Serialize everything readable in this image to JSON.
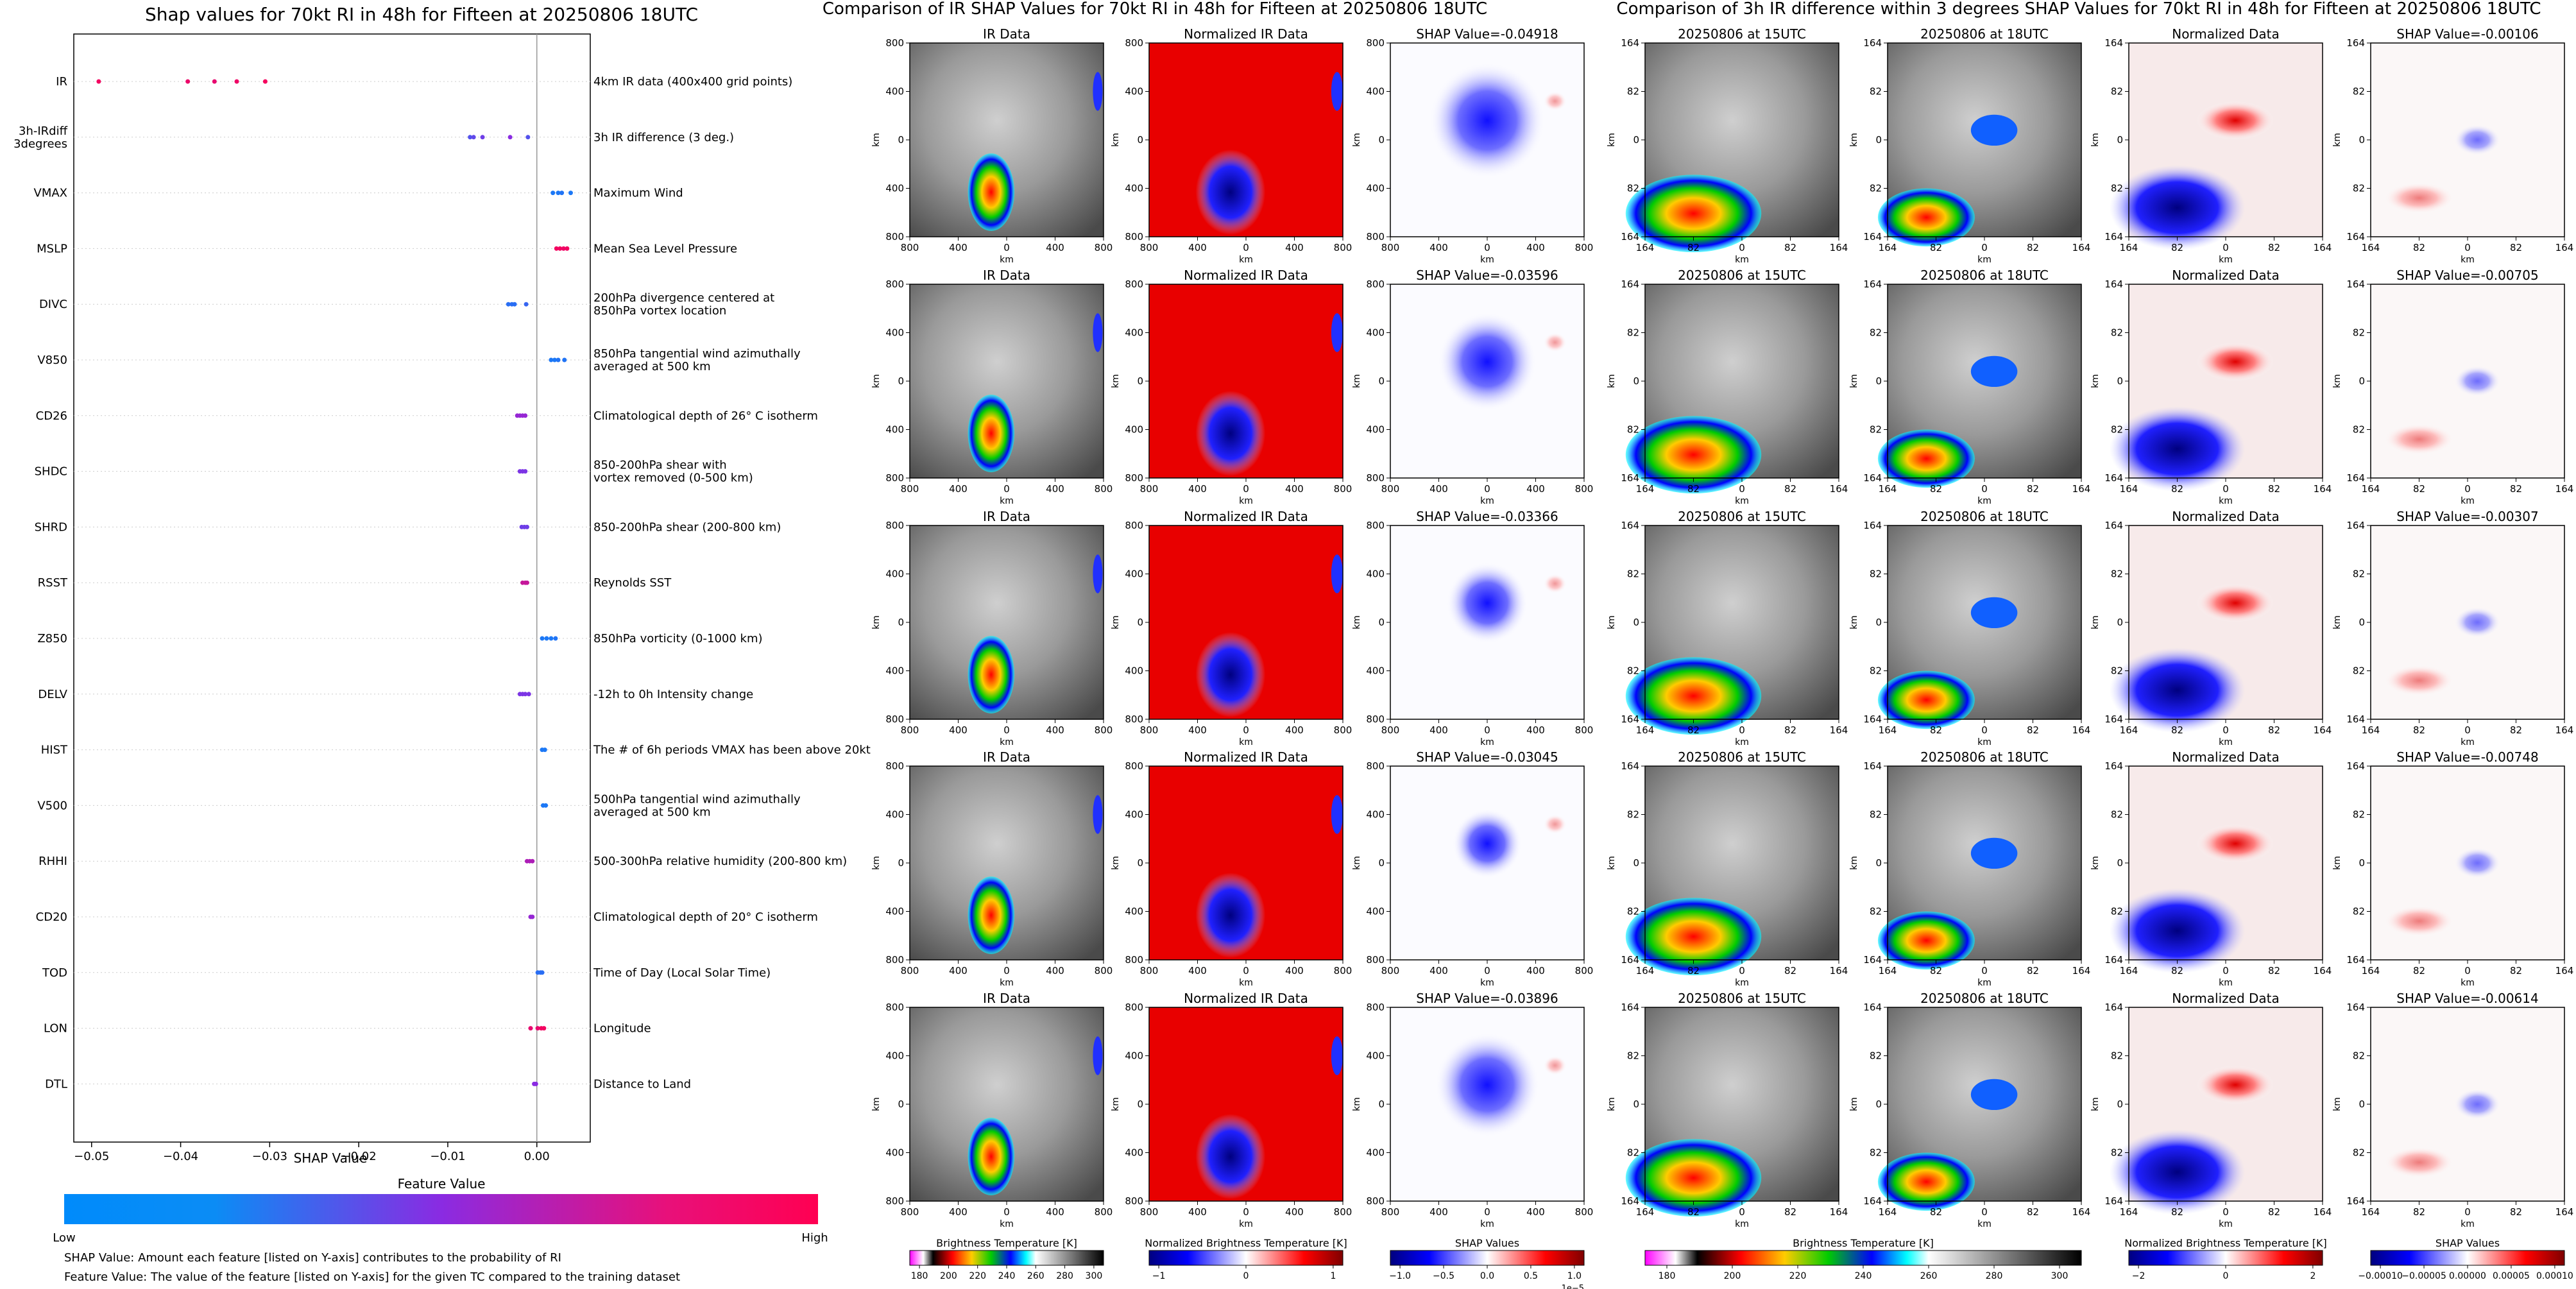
{
  "left_panel": {
    "title": "Shap values for 70kt RI in 48h for Fifteen at 20250806 18UTC",
    "xlabel": "SHAP Value",
    "colorbar_title": "Feature Value",
    "colorbar_low": "Low",
    "colorbar_high": "High",
    "footnote1": "SHAP Value: Amount each feature [listed on Y-axis] contributes to the probability of RI",
    "footnote2": "Feature Value: The value of the feature [listed on Y-axis] for the given TC compared to the training dataset"
  },
  "middle_panel": {
    "title": "Comparison of IR SHAP Values for 70kt RI in 48h for Fifteen at 20250806 18UTC",
    "col_titles": [
      "IR Data",
      "Normalized IR Data"
    ],
    "shap_titles": [
      "SHAP Value=-0.04918",
      "SHAP Value=-0.03596",
      "SHAP Value=-0.03366",
      "SHAP Value=-0.03045",
      "SHAP Value=-0.03896"
    ],
    "axis_unit": "km",
    "ticks": [
      "800",
      "400",
      "0",
      "400",
      "800"
    ],
    "colorbars": [
      {
        "label": "Brightness Temperature [K]",
        "ticks": [
          "180",
          "200",
          "220",
          "240",
          "260",
          "280",
          "300"
        ]
      },
      {
        "label": "Normalized Brightness Temperature [K]",
        "ticks": [
          "−1",
          "0",
          "1"
        ]
      },
      {
        "label": "SHAP Values",
        "ticks": [
          "−1.0",
          "−0.5",
          "0.0",
          "0.5",
          "1.0"
        ],
        "exponent": "1e−5"
      }
    ]
  },
  "right_panel": {
    "title": "Comparison of 3h IR difference within 3 degrees SHAP Values for 70kt RI in 48h for Fifteen at 20250806 18UTC",
    "col_titles": [
      "20250806 at 15UTC",
      "20250806 at 18UTC",
      "Normalized Data"
    ],
    "shap_titles": [
      "SHAP Value=-0.00106",
      "SHAP Value=-0.00705",
      "SHAP Value=-0.00307",
      "SHAP Value=-0.00748",
      "SHAP Value=-0.00614"
    ],
    "axis_unit": "km",
    "ticks": [
      "164",
      "82",
      "0",
      "82",
      "164"
    ],
    "colorbars": [
      {
        "label": "Brightness Temperature [K]",
        "ticks": [
          "180",
          "200",
          "220",
          "240",
          "260",
          "280",
          "300"
        ]
      },
      {
        "label": "Normalized Brightness Temperature [K]",
        "ticks": [
          "−2",
          "0",
          "2"
        ]
      },
      {
        "label": "SHAP Values",
        "ticks": [
          "−0.00010",
          "−0.00005",
          "0.00000",
          "0.00005",
          "0.00010"
        ]
      }
    ]
  },
  "chart_data": [
    {
      "type": "scatter",
      "title": "Shap values for 70kt RI in 48h for Fifteen at 20250806 18UTC",
      "xlabel": "SHAP Value",
      "xlim": [
        -0.052,
        0.006
      ],
      "xticks": [
        -0.05,
        -0.04,
        -0.03,
        -0.02,
        -0.01,
        0.0
      ],
      "xtick_labels": [
        "−0.05",
        "−0.04",
        "−0.03",
        "−0.02",
        "−0.01",
        "0.00"
      ],
      "colors": {
        "low": "#008bfb",
        "mid": "#8a2be2",
        "high": "#ff0052"
      },
      "features": [
        {
          "name": "IR",
          "desc": "4km IR data (400x400 grid points)",
          "points": [
            [
              -0.0492,
              0.95
            ],
            [
              -0.0392,
              0.92
            ],
            [
              -0.0362,
              0.9
            ],
            [
              -0.0337,
              0.93
            ],
            [
              -0.0305,
              0.96
            ]
          ]
        },
        {
          "name": "3h-IRdiff\n3degrees",
          "desc": "3h IR difference (3 deg.)",
          "points": [
            [
              -0.0075,
              0.3
            ],
            [
              -0.0071,
              0.35
            ],
            [
              -0.0061,
              0.4
            ],
            [
              -0.003,
              0.5
            ],
            [
              -0.001,
              0.3
            ]
          ]
        },
        {
          "name": "VMAX",
          "desc": "Maximum Wind",
          "points": [
            [
              0.0018,
              0.1
            ],
            [
              0.0024,
              0.1
            ],
            [
              0.0028,
              0.12
            ],
            [
              0.0038,
              0.1
            ]
          ]
        },
        {
          "name": "MSLP",
          "desc": "Mean Sea Level Pressure",
          "points": [
            [
              0.0022,
              0.95
            ],
            [
              0.0026,
              0.95
            ],
            [
              0.003,
              0.93
            ],
            [
              0.0034,
              0.95
            ]
          ]
        },
        {
          "name": "DIVC",
          "desc": "200hPa divergence centered at\n850hPa vortex location",
          "points": [
            [
              -0.0032,
              0.15
            ],
            [
              -0.0028,
              0.15
            ],
            [
              -0.0025,
              0.15
            ],
            [
              -0.0012,
              0.2
            ]
          ]
        },
        {
          "name": "V850",
          "desc": "850hPa tangential wind azimuthally\naveraged at 500 km",
          "points": [
            [
              0.0016,
              0.1
            ],
            [
              0.002,
              0.1
            ],
            [
              0.0024,
              0.12
            ],
            [
              0.0031,
              0.12
            ]
          ]
        },
        {
          "name": "CD26",
          "desc": "Climatological depth of 26° C isotherm",
          "points": [
            [
              -0.0022,
              0.55
            ],
            [
              -0.0019,
              0.55
            ],
            [
              -0.0016,
              0.55
            ],
            [
              -0.0013,
              0.55
            ]
          ]
        },
        {
          "name": "SHDC",
          "desc": "850-200hPa shear with\nvortex removed (0-500 km)",
          "points": [
            [
              -0.0019,
              0.45
            ],
            [
              -0.0016,
              0.45
            ],
            [
              -0.0013,
              0.45
            ]
          ]
        },
        {
          "name": "SHRD",
          "desc": "850-200hPa shear (200-800 km)",
          "points": [
            [
              -0.0017,
              0.4
            ],
            [
              -0.0014,
              0.4
            ],
            [
              -0.0011,
              0.4
            ]
          ]
        },
        {
          "name": "RSST",
          "desc": "Reynolds SST",
          "points": [
            [
              -0.0016,
              0.75
            ],
            [
              -0.0013,
              0.75
            ],
            [
              -0.0011,
              0.75
            ]
          ]
        },
        {
          "name": "Z850",
          "desc": "850hPa vorticity (0-1000 km)",
          "points": [
            [
              0.0006,
              0.1
            ],
            [
              0.0011,
              0.1
            ],
            [
              0.0016,
              0.1
            ],
            [
              0.0021,
              0.12
            ]
          ]
        },
        {
          "name": "DELV",
          "desc": "-12h to 0h Intensity change",
          "points": [
            [
              -0.0019,
              0.45
            ],
            [
              -0.0016,
              0.45
            ],
            [
              -0.0013,
              0.45
            ],
            [
              -0.0009,
              0.45
            ]
          ]
        },
        {
          "name": "HIST",
          "desc": "The # of 6h periods VMAX has been above 20kt",
          "points": [
            [
              0.0006,
              0.1
            ],
            [
              0.0009,
              0.1
            ]
          ]
        },
        {
          "name": "V500",
          "desc": "500hPa tangential wind azimuthally\naveraged at 500 km",
          "points": [
            [
              0.0007,
              0.1
            ],
            [
              0.001,
              0.1
            ]
          ]
        },
        {
          "name": "RHHI",
          "desc": "500-300hPa relative humidity (200-800 km)",
          "points": [
            [
              -0.0011,
              0.65
            ],
            [
              -0.0008,
              0.65
            ],
            [
              -0.0005,
              0.65
            ]
          ]
        },
        {
          "name": "CD20",
          "desc": "Climatological depth of 20° C isotherm",
          "points": [
            [
              -0.0007,
              0.55
            ],
            [
              -0.0005,
              0.55
            ]
          ]
        },
        {
          "name": "TOD",
          "desc": "Time of Day (Local Solar Time)",
          "points": [
            [
              0.0001,
              0.15
            ],
            [
              0.0004,
              0.15
            ],
            [
              0.0006,
              0.15
            ]
          ]
        },
        {
          "name": "LON",
          "desc": "Longitude",
          "points": [
            [
              -0.0007,
              0.9
            ],
            [
              0.0001,
              0.9
            ],
            [
              0.0005,
              0.95
            ],
            [
              0.0008,
              0.95
            ]
          ]
        },
        {
          "name": "DTL",
          "desc": "Distance to Land",
          "points": [
            [
              -0.0003,
              0.5
            ],
            [
              -0.0001,
              0.5
            ]
          ]
        }
      ]
    },
    {
      "type": "heatmap",
      "title": "Comparison of IR SHAP Values for 70kt RI in 48h for Fifteen at 20250806 18UTC",
      "xlabel": "km",
      "ylabel": "km",
      "xlim": [
        -800,
        800
      ],
      "ylim": [
        -800,
        800
      ],
      "columns": [
        "IR Data",
        "Normalized IR Data",
        "SHAP Value"
      ],
      "shap_values": [
        -0.04918,
        -0.03596,
        -0.03366,
        -0.03045,
        -0.03896
      ]
    },
    {
      "type": "heatmap",
      "title": "Comparison of 3h IR difference within 3 degrees SHAP Values for 70kt RI in 48h for Fifteen at 20250806 18UTC",
      "xlabel": "km",
      "ylabel": "km",
      "xlim": [
        -164,
        164
      ],
      "ylim": [
        -164,
        164
      ],
      "columns": [
        "20250806 at 15UTC",
        "20250806 at 18UTC",
        "Normalized Data",
        "SHAP Value"
      ],
      "shap_values": [
        -0.00106,
        -0.00705,
        -0.00307,
        -0.00748,
        -0.00614
      ]
    }
  ]
}
